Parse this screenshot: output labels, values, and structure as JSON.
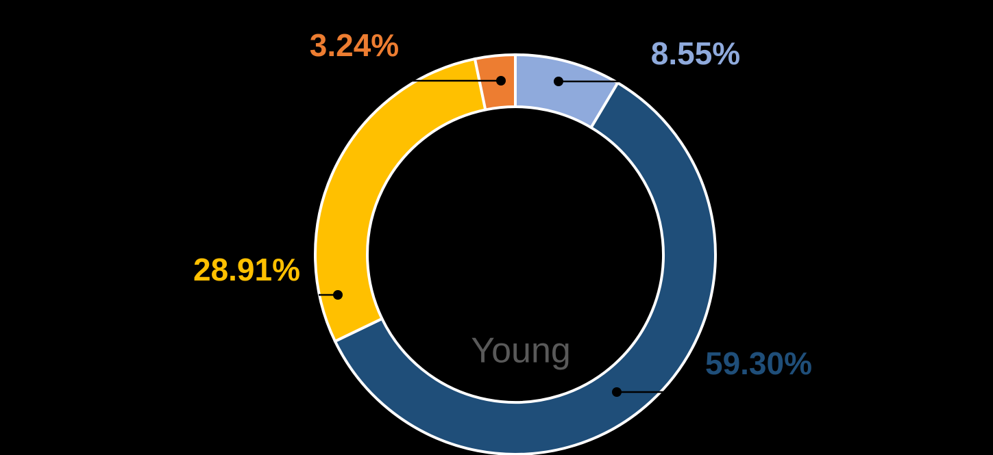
{
  "chart_data": {
    "type": "donut",
    "center_label": "Young",
    "values": [
      8.55,
      59.3,
      28.91,
      3.24
    ],
    "value_labels": [
      "8.55%",
      "59.30%",
      "28.91%",
      "3.24%"
    ],
    "colors": [
      "#8faadc",
      "#1f4e79",
      "#ffc000",
      "#ed7d31"
    ]
  }
}
